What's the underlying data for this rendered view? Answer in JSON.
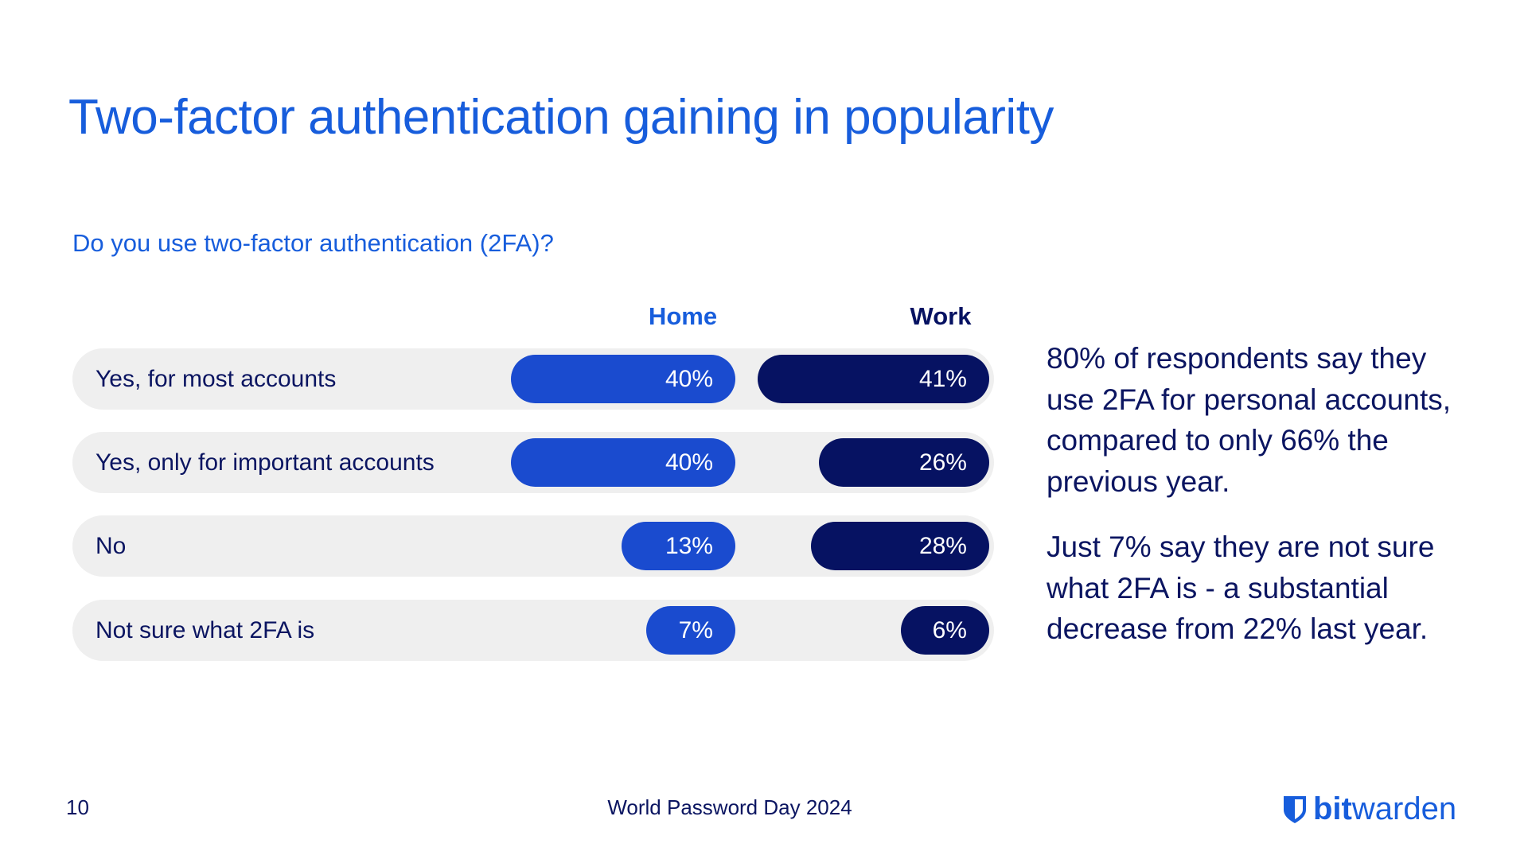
{
  "title": "Two-factor authentication gaining in popularity",
  "chart_data": {
    "type": "bar",
    "title": "Do you use two-factor authentication (2FA)?",
    "categories": [
      "Yes, for most accounts",
      "Yes, only for important accounts",
      "No",
      "Not sure what 2FA is"
    ],
    "series": [
      {
        "name": "Home",
        "values": [
          40,
          40,
          13,
          7
        ],
        "labels": [
          "40%",
          "40%",
          "13%",
          "7%"
        ],
        "color": "#1a4bcf"
      },
      {
        "name": "Work",
        "values": [
          41,
          26,
          28,
          6
        ],
        "labels": [
          "41%",
          "26%",
          "28%",
          "6%"
        ],
        "color": "#061262"
      }
    ],
    "unit": "%"
  },
  "notes": [
    "80% of respondents say they use 2FA for personal accounts, compared to only 66% the previous year.",
    "Just 7% say they are not sure what 2FA is - a substantial decrease from 22% last year."
  ],
  "footer": {
    "page_number": "10",
    "event": "World Password Day 2024"
  },
  "logo": {
    "text_bold": "bit",
    "text_light": "warden",
    "icon": "shield-icon"
  },
  "colors": {
    "title": "#175ddc",
    "home": "#1a4bcf",
    "work": "#061262",
    "text": "#0b1561",
    "row_bg": "#efefef"
  }
}
